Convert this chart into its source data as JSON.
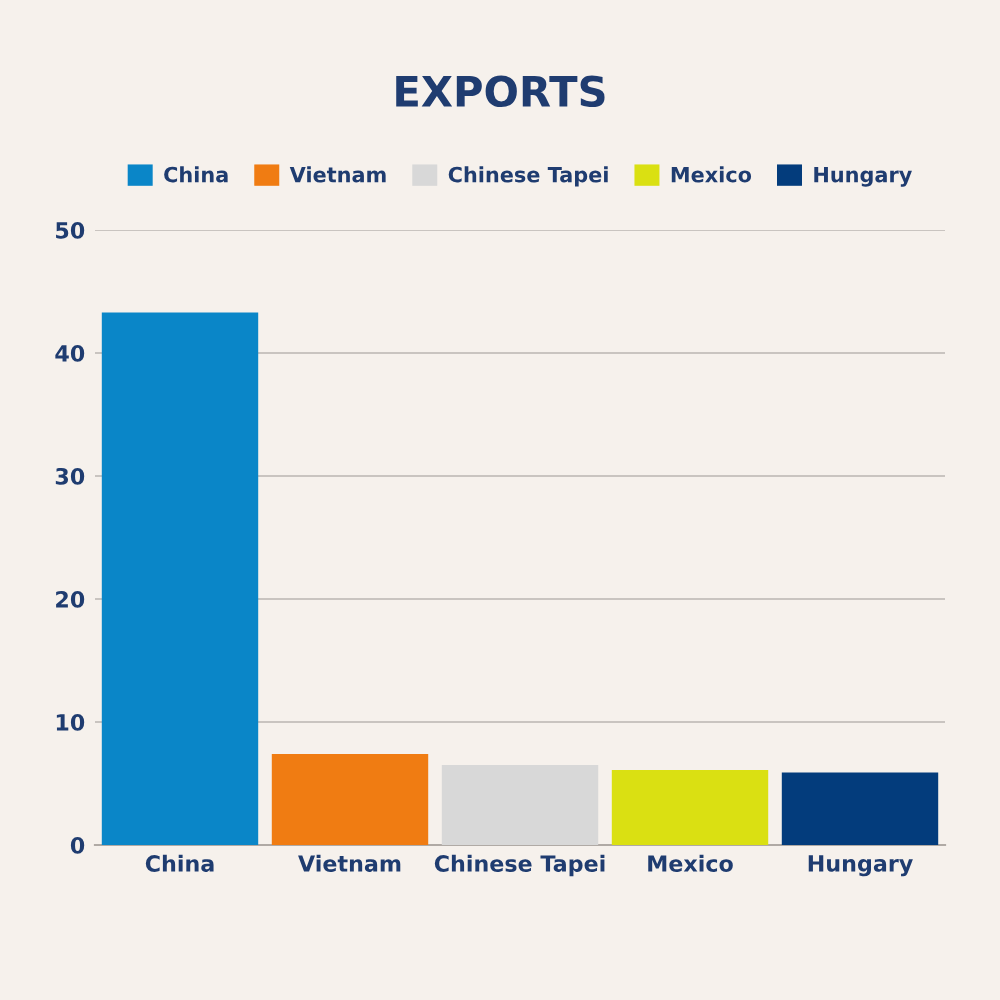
{
  "chart_data": {
    "type": "bar",
    "title": "EXPORTS",
    "categories": [
      "China",
      "Vietnam",
      "Chinese Tapei",
      "Mexico",
      "Hungary"
    ],
    "series": [
      {
        "name": "China",
        "color": "#0a86c8",
        "values": [
          43.3,
          null,
          null,
          null,
          null
        ]
      },
      {
        "name": "Vietnam",
        "color": "#f07c12",
        "values": [
          null,
          7.4,
          null,
          null,
          null
        ]
      },
      {
        "name": "Chinese Tapei",
        "color": "#d8d8d8",
        "values": [
          null,
          null,
          6.5,
          null,
          null
        ]
      },
      {
        "name": "Mexico",
        "color": "#dae012",
        "values": [
          null,
          null,
          null,
          6.1,
          null
        ]
      },
      {
        "name": "Hungary",
        "color": "#033c7c",
        "values": [
          null,
          null,
          null,
          null,
          5.9
        ]
      }
    ],
    "ylim": [
      0,
      50
    ],
    "yticks": [
      0,
      10,
      20,
      30,
      40,
      50
    ],
    "grid": "y",
    "legend": "top"
  }
}
